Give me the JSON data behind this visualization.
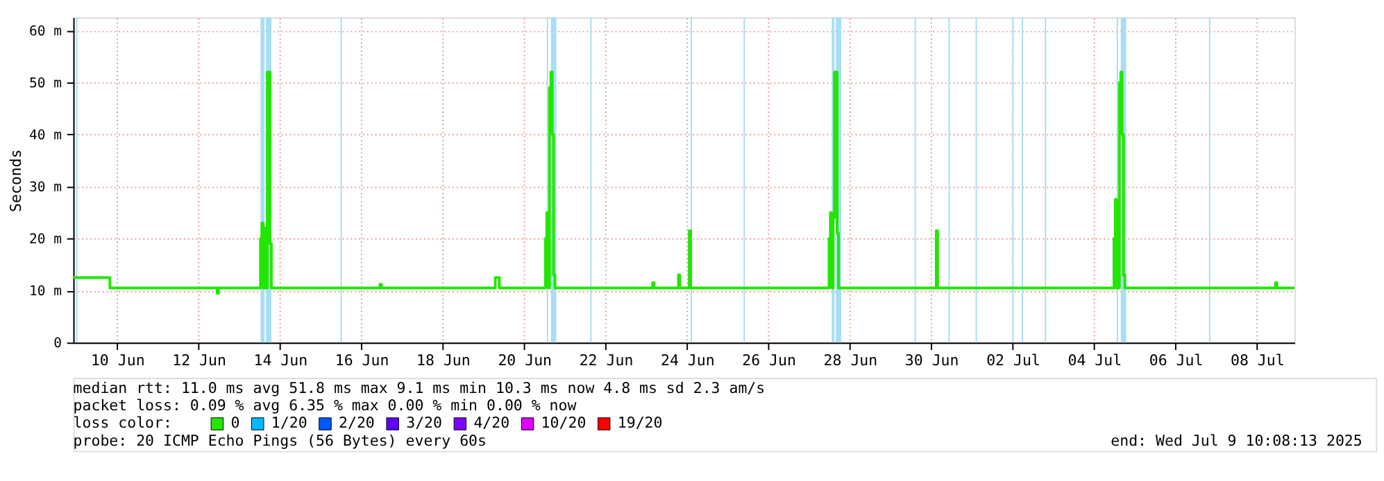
{
  "chart_data": {
    "type": "line",
    "ylabel": "Seconds",
    "xlim": [
      "2025-06-09T10:08",
      "2025-07-09T10:08"
    ],
    "ylim": [
      0,
      62.5
    ],
    "yticks": [
      0,
      {
        "value": 10,
        "label": "10 m"
      },
      {
        "value": 20,
        "label": "20 m"
      },
      {
        "value": 30,
        "label": "30 m"
      },
      {
        "value": 40,
        "label": "40 m"
      },
      {
        "value": 50,
        "label": "50 m"
      },
      {
        "value": 60,
        "label": "60 m"
      }
    ],
    "xticks": [
      {
        "value": "2025-06-10T12:00",
        "label": "10 Jun"
      },
      {
        "value": "2025-06-12T12:00",
        "label": "12 Jun"
      },
      {
        "value": "2025-06-14T12:00",
        "label": "14 Jun"
      },
      {
        "value": "2025-06-16T12:00",
        "label": "16 Jun"
      },
      {
        "value": "2025-06-18T12:00",
        "label": "18 Jun"
      },
      {
        "value": "2025-06-20T12:00",
        "label": "20 Jun"
      },
      {
        "value": "2025-06-22T12:00",
        "label": "22 Jun"
      },
      {
        "value": "2025-06-24T12:00",
        "label": "24 Jun"
      },
      {
        "value": "2025-06-26T12:00",
        "label": "26 Jun"
      },
      {
        "value": "2025-06-28T12:00",
        "label": "28 Jun"
      },
      {
        "value": "2025-06-30T12:00",
        "label": "30 Jun"
      },
      {
        "value": "2025-07-02T12:00",
        "label": "02 Jul"
      },
      {
        "value": "2025-07-04T12:00",
        "label": "04 Jul"
      },
      {
        "value": "2025-07-06T12:00",
        "label": "06 Jul"
      },
      {
        "value": "2025-07-08T12:00",
        "label": "08 Jul"
      }
    ],
    "grid": true,
    "legend": "bottom",
    "legend_title": "loss color:",
    "series": [
      {
        "name": "0",
        "color": "#22e600",
        "x": [
          "2025-06-09T10:08",
          "2025-06-10T06:56",
          "2025-06-10T07:44",
          "2025-06-12T22:08",
          "2025-06-12T22:56",
          "2025-06-12T23:44",
          "2025-06-13T23:44",
          "2025-06-14T00:32",
          "2025-06-14T01:20",
          "2025-06-14T02:08",
          "2025-06-14T02:56",
          "2025-06-14T03:44",
          "2025-06-14T04:32",
          "2025-06-14T05:20",
          "2025-06-14T06:08",
          "2025-06-14T06:56",
          "2025-06-16T22:08",
          "2025-06-16T22:56",
          "2025-06-16T23:44",
          "2025-06-19T18:08",
          "2025-06-19T18:56",
          "2025-06-19T20:32",
          "2025-06-19T21:20",
          "2025-06-20T23:44",
          "2025-06-21T00:32",
          "2025-06-21T01:20",
          "2025-06-21T02:08",
          "2025-06-21T02:56",
          "2025-06-21T03:44",
          "2025-06-21T04:32",
          "2025-06-21T05:20",
          "2025-06-21T06:08",
          "2025-06-23T14:56",
          "2025-06-23T15:44",
          "2025-06-23T16:32",
          "2025-06-24T06:08",
          "2025-06-24T06:56",
          "2025-06-24T07:44",
          "2025-06-24T12:32",
          "2025-06-24T13:20",
          "2025-06-24T14:08",
          "2025-06-27T22:56",
          "2025-06-27T23:44",
          "2025-06-28T00:32",
          "2025-06-28T01:20",
          "2025-06-28T02:08",
          "2025-06-28T02:56",
          "2025-06-28T03:44",
          "2025-06-28T04:32",
          "2025-06-28T05:20",
          "2025-06-28T06:08",
          "2025-06-30T14:08",
          "2025-06-30T14:56",
          "2025-06-30T15:44",
          "2025-07-04T22:56",
          "2025-07-04T23:44",
          "2025-07-05T00:32",
          "2025-07-05T01:20",
          "2025-07-05T02:08",
          "2025-07-05T02:56",
          "2025-07-05T03:44",
          "2025-07-05T04:32",
          "2025-07-05T05:20",
          "2025-07-05T06:08",
          "2025-07-08T22:08",
          "2025-07-08T22:56",
          "2025-07-08T23:44",
          "2025-07-09T10:08"
        ],
        "values": [
          12.5,
          12.5,
          10.5,
          10.5,
          9.5,
          10.5,
          10.5,
          20,
          23,
          10.5,
          22,
          10.5,
          52,
          52,
          19,
          10.5,
          10.5,
          11.2,
          10.5,
          10.5,
          12.5,
          12.5,
          10.5,
          10.5,
          20,
          25,
          10.5,
          49,
          52,
          40,
          13,
          10.5,
          10.5,
          11.5,
          10.5,
          10.5,
          13,
          10.5,
          10.5,
          21.5,
          10.5,
          10.5,
          20,
          25,
          10.5,
          24,
          52,
          52,
          21,
          10.5,
          10.5,
          10.5,
          21.5,
          10.5,
          10.5,
          20,
          27.5,
          10.5,
          10.5,
          50,
          52,
          40,
          13,
          10.5,
          10.5,
          11.5,
          10.5,
          10.5
        ]
      },
      {
        "name": "1/20",
        "color": "#00b8ff"
      },
      {
        "name": "2/20",
        "color": "#0059ff"
      },
      {
        "name": "3/20",
        "color": "#5e00ff"
      },
      {
        "name": "4/20",
        "color": "#7e00ff"
      },
      {
        "name": "10/20",
        "color": "#dd00ff"
      },
      {
        "name": "19/20",
        "color": "#ff0000"
      }
    ],
    "bands": [
      {
        "axis": "x",
        "from": "2025-06-09T11:44",
        "to": "2025-06-09T12:32",
        "color": "#a8def5"
      },
      {
        "axis": "x",
        "from": "2025-06-14T00:32",
        "to": "2025-06-14T02:56",
        "color": "#a8def5"
      },
      {
        "axis": "x",
        "from": "2025-06-14T03:44",
        "to": "2025-06-14T06:56",
        "color": "#a8def5"
      },
      {
        "axis": "x",
        "from": "2025-06-15T23:44",
        "to": "2025-06-16T00:32",
        "color": "#a8def5"
      },
      {
        "axis": "x",
        "from": "2025-06-21T01:20",
        "to": "2025-06-21T02:08",
        "color": "#a8def5"
      },
      {
        "axis": "x",
        "from": "2025-06-21T03:44",
        "to": "2025-06-21T06:56",
        "color": "#a8def5"
      },
      {
        "axis": "x",
        "from": "2025-06-22T02:56",
        "to": "2025-06-22T03:44",
        "color": "#a8def5"
      },
      {
        "axis": "x",
        "from": "2025-06-24T14:08",
        "to": "2025-06-24T14:56",
        "color": "#a8def5"
      },
      {
        "axis": "x",
        "from": "2025-06-25T21:20",
        "to": "2025-06-25T22:08",
        "color": "#a8def5"
      },
      {
        "axis": "x",
        "from": "2025-06-28T01:20",
        "to": "2025-06-28T02:56",
        "color": "#a8def5"
      },
      {
        "axis": "x",
        "from": "2025-06-28T03:44",
        "to": "2025-06-28T06:56",
        "color": "#a8def5"
      },
      {
        "axis": "x",
        "from": "2025-06-30T02:08",
        "to": "2025-06-30T02:56",
        "color": "#a8def5"
      },
      {
        "axis": "x",
        "from": "2025-06-30T22:08",
        "to": "2025-06-30T22:56",
        "color": "#a8def5"
      },
      {
        "axis": "x",
        "from": "2025-07-01T14:08",
        "to": "2025-07-01T14:56",
        "color": "#a8def5"
      },
      {
        "axis": "x",
        "from": "2025-07-02T11:44",
        "to": "2025-07-02T12:32",
        "color": "#a8def5"
      },
      {
        "axis": "x",
        "from": "2025-07-02T17:20",
        "to": "2025-07-02T18:08",
        "color": "#a8def5"
      },
      {
        "axis": "x",
        "from": "2025-07-03T06:56",
        "to": "2025-07-03T07:44",
        "color": "#a8def5"
      },
      {
        "axis": "x",
        "from": "2025-07-05T01:20",
        "to": "2025-07-05T02:08",
        "color": "#a8def5"
      },
      {
        "axis": "x",
        "from": "2025-07-05T03:44",
        "to": "2025-07-05T06:56",
        "color": "#a8def5"
      },
      {
        "axis": "x",
        "from": "2025-07-07T07:44",
        "to": "2025-07-07T08:32",
        "color": "#a8def5"
      }
    ],
    "annotations": [
      "median rtt: 11.0 ms avg 51.8 ms max 9.1 ms min 10.3 ms now 4.8 ms sd 2.3 am/s",
      "packet loss: 0.09 % avg 6.35 % max 0.00 % min 0.00 % now",
      "probe: 20 ICMP Echo Pings (56 Bytes) every 60s",
      "end: Wed Jul 9 10:08:13 2025"
    ]
  }
}
